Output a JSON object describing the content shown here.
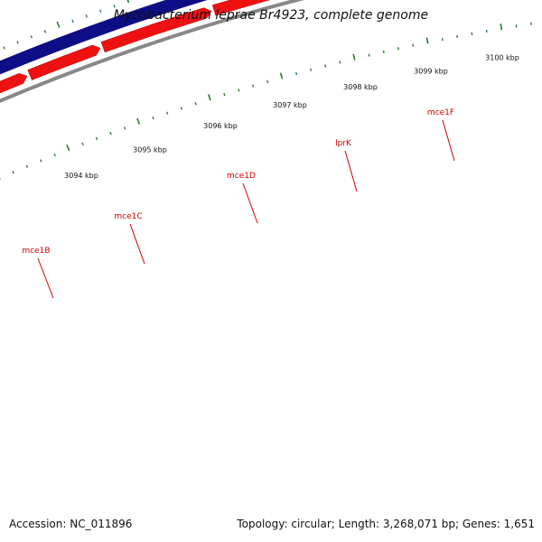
{
  "title": "Mycobacterium leprae Br4923, complete genome",
  "footer": {
    "accession": "Accession: NC_011896",
    "stats": "Topology: circular; Length: 3,268,071 bp; Genes: 1,651"
  },
  "colors": {
    "forward_track": "#0d0d85",
    "reverse_track": "#ee1111",
    "backbone": "#888888",
    "tick": "#2d7a2d",
    "gene_label": "#cc0000",
    "text": "#111111"
  },
  "genes": [
    {
      "name": "mce1B"
    },
    {
      "name": "mce1C"
    },
    {
      "name": "mce1D"
    },
    {
      "name": "lprK"
    },
    {
      "name": "mce1F"
    }
  ],
  "scale_labels": [
    "3094 kbp",
    "3095 kbp",
    "3096 kbp",
    "3097 kbp",
    "3098 kbp",
    "3099 kbp",
    "3100 kbp"
  ]
}
